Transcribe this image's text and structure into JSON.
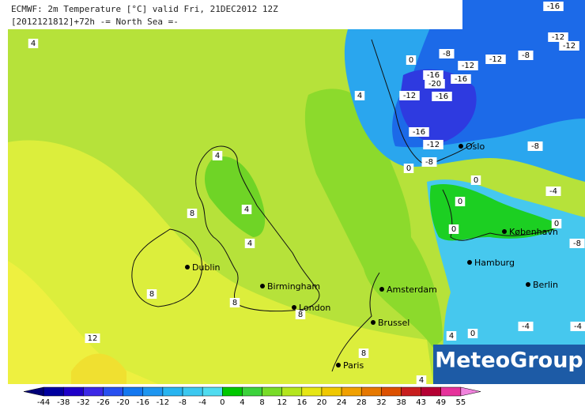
{
  "header": {
    "line1": "ECMWF: 2m Temperature [°C] valid Fri, 21DEC2012 12Z",
    "line2": "[2012121812]+72h -= North Sea =-"
  },
  "logo": "MeteoGroup",
  "cities": [
    "Dublin",
    "Birmingham",
    "London",
    "Amsterdam",
    "Brussel",
    "Paris",
    "Hamburg",
    "Berlin",
    "København",
    "Oslo"
  ],
  "contour_labels": [
    4,
    4,
    4,
    4,
    8,
    4,
    8,
    8,
    8,
    12,
    8,
    4,
    0,
    4,
    0,
    -8,
    -12,
    -12,
    -8,
    -16,
    -12,
    -12,
    -16,
    -20,
    -16,
    -12,
    -16,
    -16,
    -12,
    -8,
    0,
    0,
    0,
    -8,
    -4,
    0,
    0,
    -8,
    -4,
    -4
  ],
  "scale": {
    "ticks": [
      -44,
      -38,
      -32,
      -26,
      -20,
      -16,
      -12,
      -8,
      -4,
      0,
      4,
      8,
      12,
      16,
      20,
      24,
      28,
      32,
      38,
      43,
      49,
      55
    ],
    "colors": [
      "#000078",
      "#0000a0",
      "#1e00c8",
      "#3c28e6",
      "#2850f0",
      "#1478f0",
      "#1e96f0",
      "#28b4f0",
      "#3cc8f0",
      "#50dcf0",
      "#00c800",
      "#3cd23c",
      "#78dc28",
      "#b4e61e",
      "#e6e614",
      "#f0c800",
      "#f0a000",
      "#e67800",
      "#dc5000",
      "#c81e1e",
      "#b40032",
      "#e6329b",
      "#f082dc"
    ]
  }
}
